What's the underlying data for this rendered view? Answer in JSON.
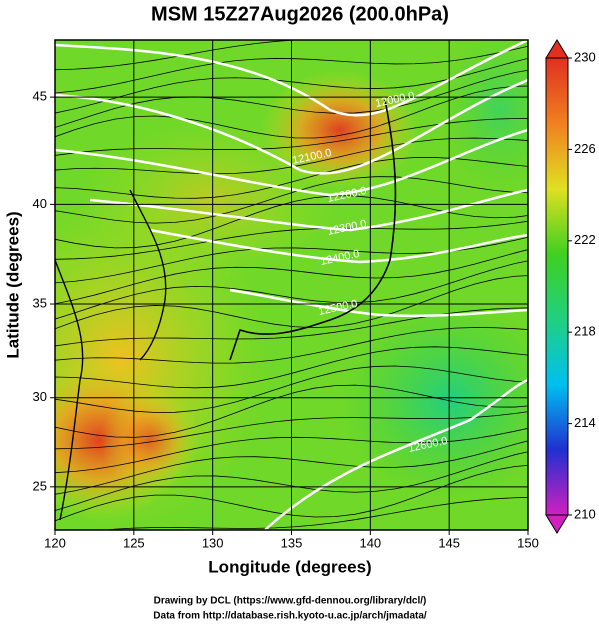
{
  "header": {
    "title": "MSM 15Z27Aug2026 (200.0hPa)"
  },
  "map": {
    "projection": "mercator",
    "xlabel": "Longitude (degrees)",
    "ylabel": "Latitude  (degrees)",
    "xlim": [
      120,
      150
    ],
    "ylim": [
      22.5,
      47.5
    ],
    "xticks": [
      120,
      125,
      130,
      135,
      140,
      145,
      150
    ],
    "yticks": [
      25,
      30,
      35,
      40,
      45
    ],
    "grid": true,
    "contour_labels": [
      "12000.0",
      "12100.0",
      "12200.0",
      "12300.0",
      "12400.0",
      "12500.0",
      "12600.0"
    ]
  },
  "colorbar": {
    "lim": [
      210,
      230
    ],
    "ticks": [
      210,
      214,
      218,
      222,
      226,
      230
    ],
    "colors": [
      "#d020c0",
      "#2030d0",
      "#00c0f0",
      "#20d080",
      "#40d020",
      "#e0e020",
      "#f08020",
      "#e03020"
    ]
  },
  "footer": {
    "credits": [
      "Drawing by DCL (https://www.gfd-dennou.org/library/dcl/)",
      "Data from http://database.rish.kyoto-u.ac.jp/arch/jmadata/"
    ]
  }
}
